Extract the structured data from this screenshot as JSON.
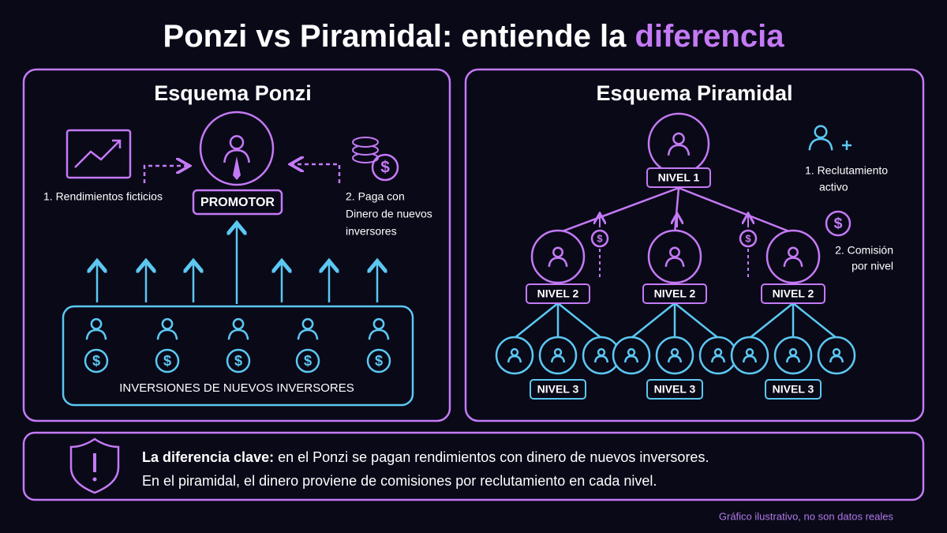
{
  "title": {
    "main": "Ponzi vs Piramidal: entiende la",
    "highlight": "diferencia"
  },
  "currency_symbol": "$",
  "ponzi": {
    "title": "Esquema Ponzi",
    "promoter": "PROMOTOR",
    "note_left": "1. Rendimientos ficticios",
    "note_right": [
      "2. Paga con",
      "Dinero de nuevos",
      "inversores"
    ],
    "investors_label": "INVERSIONES DE NUEVOS INVERSORES"
  },
  "pyramid": {
    "title": "Esquema Piramidal",
    "level1": "NIVEL 1",
    "level2": [
      "NIVEL 2",
      "NIVEL 2",
      "NIVEL 2"
    ],
    "level3": [
      "NIVEL 3",
      "NIVEL 3",
      "NIVEL 3"
    ],
    "note_recruit": [
      "1. Reclutamiento",
      "activo"
    ],
    "note_commission": [
      "2. Comisión",
      "por nivel"
    ]
  },
  "footer": {
    "bold": "La diferencia clave:",
    "line1": "en el Ponzi se pagan rendimientos con dinero de nuevos inversores.",
    "line2": "En el piramidal, el dinero proviene de comisiones por reclutamiento en cada nivel."
  },
  "source": "Gráfico ilustrativo, no son datos reales"
}
